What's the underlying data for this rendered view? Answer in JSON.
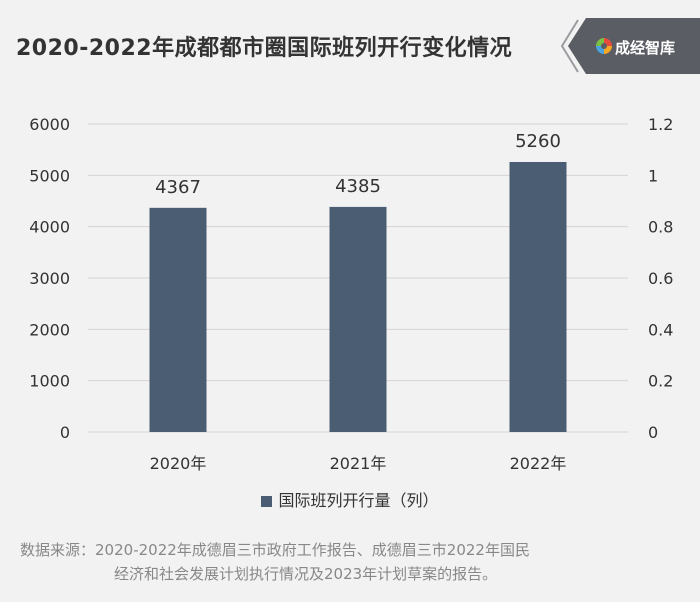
{
  "title": "2020-2022年成都都市圈国际班列开行变化情况",
  "brand": {
    "name": "成经智库",
    "logo_icon": "brand-logo-icon"
  },
  "source": {
    "label": "数据来源：",
    "line1": "2020-2022年成德眉三市政府工作报告、成德眉三市2022年国民",
    "line2": "经济和社会发展计划执行情况及2023年计划草案的报告。"
  },
  "chart_data": {
    "type": "bar",
    "categories": [
      "2020年",
      "2021年",
      "2022年"
    ],
    "series": [
      {
        "name": "国际班列开行量（列）",
        "values": [
          4367,
          4385,
          5260
        ],
        "color": "#4a5d72"
      }
    ],
    "data_labels": [
      "4367",
      "4385",
      "5260"
    ],
    "ylim": [
      0,
      6000
    ],
    "y_ticks": [
      0,
      1000,
      2000,
      3000,
      4000,
      5000,
      6000
    ],
    "y2lim": [
      0,
      1.2
    ],
    "y2_ticks": [
      "0",
      "0.2",
      "0.4",
      "0.6",
      "0.8",
      "1",
      "1.2"
    ],
    "grid": true,
    "legend_position": "bottom"
  }
}
